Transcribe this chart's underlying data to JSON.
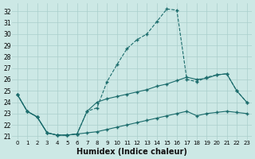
{
  "xlabel": "Humidex (Indice chaleur)",
  "bg_color": "#cce8e5",
  "grid_color": "#aacfcc",
  "line_color": "#1a6b6b",
  "xlim": [
    -0.5,
    23.5
  ],
  "ylim": [
    20.7,
    32.7
  ],
  "yticks": [
    21,
    22,
    23,
    24,
    25,
    26,
    27,
    28,
    29,
    30,
    31,
    32
  ],
  "xticks": [
    0,
    1,
    2,
    3,
    4,
    5,
    6,
    7,
    8,
    9,
    10,
    11,
    12,
    13,
    14,
    15,
    16,
    17,
    18,
    19,
    20,
    21,
    22,
    23
  ],
  "curves": [
    {
      "x": [
        0,
        1,
        2,
        3,
        4,
        5,
        6,
        7,
        8,
        9,
        10,
        11,
        12,
        13,
        14,
        15,
        16,
        17,
        18,
        19,
        20,
        21,
        22,
        23
      ],
      "y": [
        24.7,
        23.2,
        22.7,
        21.3,
        21.1,
        21.1,
        21.2,
        23.2,
        23.5,
        25.8,
        27.3,
        28.7,
        29.5,
        30.0,
        31.1,
        32.2,
        32.1,
        26.0,
        25.8,
        26.2,
        26.4,
        26.5,
        25.0,
        24.0
      ],
      "linestyle": "--",
      "marker": true
    },
    {
      "x": [
        0,
        1,
        2,
        3,
        4,
        5,
        6,
        7,
        8,
        9,
        10,
        11,
        12,
        13,
        14,
        15,
        16,
        17,
        18,
        19,
        20,
        21,
        22,
        23
      ],
      "y": [
        24.7,
        23.2,
        22.7,
        21.3,
        21.1,
        21.1,
        21.2,
        23.2,
        24.0,
        24.3,
        24.5,
        24.7,
        24.9,
        25.1,
        25.4,
        25.6,
        25.9,
        26.2,
        26.0,
        26.1,
        26.4,
        26.5,
        25.0,
        24.0
      ],
      "linestyle": "-",
      "marker": true
    },
    {
      "x": [
        0,
        1,
        2,
        3,
        4,
        5,
        6,
        7,
        8,
        9,
        10,
        11,
        12,
        13,
        14,
        15,
        16,
        17,
        18,
        19,
        20,
        21,
        22,
        23
      ],
      "y": [
        24.7,
        23.2,
        22.7,
        21.3,
        21.1,
        21.1,
        21.2,
        21.3,
        21.4,
        21.6,
        21.8,
        22.0,
        22.2,
        22.4,
        22.6,
        22.8,
        23.0,
        23.2,
        22.8,
        23.0,
        23.1,
        23.2,
        23.1,
        23.0
      ],
      "linestyle": "-",
      "marker": true
    }
  ]
}
